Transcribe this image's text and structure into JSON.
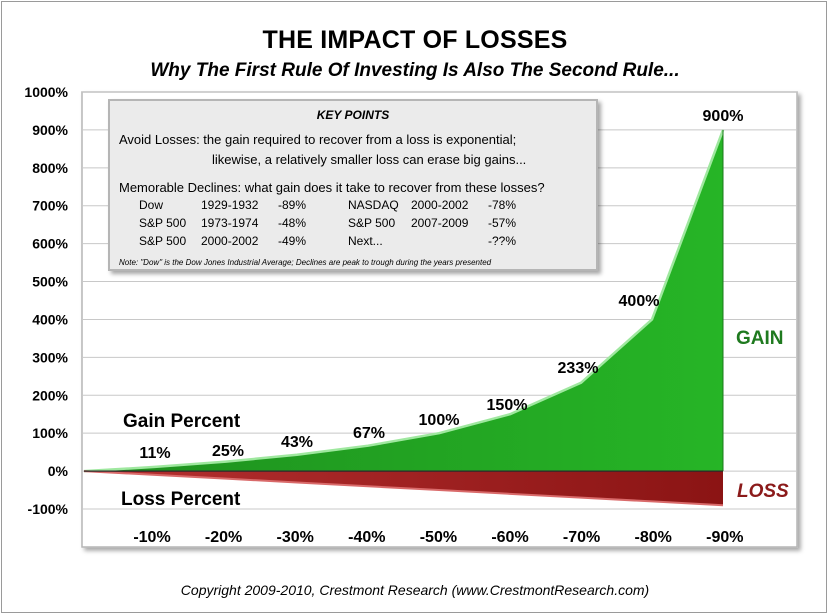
{
  "title": "THE IMPACT OF LOSSES",
  "subtitle": "Why The First Rule Of Investing Is Also The Second Rule...",
  "copyright": "Copyright 2009-2010, Crestmont Research (www.CrestmontResearch.com)",
  "key_points": {
    "heading": "KEY POINTS",
    "line1": "Avoid Losses:  the gain required to recover from a loss is exponential;",
    "line2": "likewise, a relatively smaller loss can erase big gains...",
    "declines_intro": "Memorable Declines:  what gain does it take to recover from these losses?",
    "declines": [
      {
        "index": "Dow",
        "period": "1929-1932",
        "change": "-89%"
      },
      {
        "index": "S&P 500",
        "period": "1973-1974",
        "change": "-48%"
      },
      {
        "index": "S&P 500",
        "period": "2000-2002",
        "change": "-49%"
      },
      {
        "index": "NASDAQ",
        "period": "2000-2002",
        "change": "-78%"
      },
      {
        "index": "S&P 500",
        "period": "2007-2009",
        "change": "-57%"
      },
      {
        "index": "Next...",
        "period": "",
        "change": "-??%"
      }
    ],
    "note": "Note: \"Dow\" is the Dow Jones Industrial Average; Declines are peak to trough during the years presented"
  },
  "chart_data": {
    "type": "area",
    "title": "THE IMPACT OF LOSSES",
    "subtitle": "Why The First Rule Of Investing Is Also The Second Rule...",
    "y_ticks": [
      "1000%",
      "900%",
      "800%",
      "700%",
      "600%",
      "500%",
      "400%",
      "300%",
      "200%",
      "100%",
      "0%",
      "-100%"
    ],
    "ylim": [
      -100,
      1000
    ],
    "grid": true,
    "loss": [
      -10,
      -20,
      -30,
      -40,
      -50,
      -60,
      -70,
      -80,
      -90
    ],
    "loss_labels": [
      "-10%",
      "-20%",
      "-30%",
      "-40%",
      "-50%",
      "-60%",
      "-70%",
      "-80%",
      "-90%"
    ],
    "gain": [
      11,
      25,
      43,
      67,
      100,
      150,
      233,
      400,
      900
    ],
    "gain_labels": [
      "11%",
      "25%",
      "43%",
      "67%",
      "100%",
      "150%",
      "233%",
      "400%",
      "900%"
    ],
    "gain_series_label": "Gain Percent",
    "loss_series_label": "Loss Percent",
    "gain_word": "GAIN",
    "loss_word": "LOSS",
    "colors": {
      "gain": "#22a522",
      "gain_edge": "#9fe89f",
      "loss": "#9a1c1c",
      "loss_edge": "#d96a6a",
      "grid": "#c8c8c8"
    }
  }
}
